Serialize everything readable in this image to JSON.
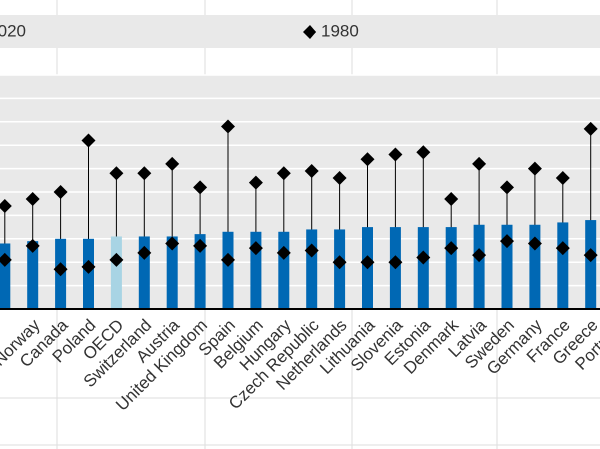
{
  "chart_data": {
    "type": "bar",
    "categories": [
      null,
      "Norway",
      "Canada",
      "Poland",
      "OECD",
      "Switzerland",
      "Austria",
      "United Kingdom",
      "Spain",
      "Belgium",
      "Hungary",
      "Czech Republic",
      "Netherlands",
      "Lithuania",
      "Slovenia",
      "Estonia",
      "Denmark",
      "Latvia",
      "Sweden",
      "Germany",
      "France",
      "Greece",
      "Portugal"
    ],
    "series": [
      {
        "name": "2020",
        "type": "bar",
        "color": "#0068b4",
        "colors": [
          "#0068b4",
          "#0068b4",
          "#0068b4",
          "#0068b4",
          "#a8d4e4",
          "#0068b4",
          "#0068b4",
          "#0068b4",
          "#0068b4",
          "#0068b4",
          "#0068b4",
          "#0068b4",
          "#0068b4",
          "#0068b4",
          "#0068b4",
          "#0068b4",
          "#0068b4",
          "#0068b4",
          "#0068b4",
          "#0068b4",
          "#0068b4",
          "#0068b4",
          "#0068b4"
        ],
        "values": [
          2.8,
          2.9,
          3.0,
          3.0,
          3.1,
          3.1,
          3.1,
          3.2,
          3.3,
          3.3,
          3.3,
          3.4,
          3.4,
          3.5,
          3.5,
          3.5,
          3.5,
          3.6,
          3.6,
          3.6,
          3.7,
          3.8,
          3.8
        ]
      },
      {
        "name": "1980",
        "type": "diamond",
        "color": "#000000",
        "values": [
          4.4,
          4.7,
          5.0,
          7.2,
          5.8,
          5.8,
          6.2,
          5.2,
          7.8,
          5.4,
          5.8,
          5.9,
          5.6,
          6.4,
          6.6,
          6.7,
          4.7,
          6.2,
          5.2,
          6.0,
          5.6,
          7.7,
          null
        ]
      },
      {
        "type": "diamond",
        "color": "#000000",
        "values": [
          2.1,
          2.7,
          1.7,
          1.8,
          2.1,
          2.4,
          2.8,
          2.7,
          2.1,
          2.6,
          2.4,
          2.5,
          2.0,
          2.0,
          2.0,
          2.2,
          2.6,
          2.3,
          2.9,
          2.8,
          2.6,
          2.3,
          null
        ]
      }
    ],
    "ylim": [
      0,
      10
    ],
    "yticks": [
      0,
      1,
      2,
      3,
      4,
      5,
      6,
      7,
      8,
      9,
      10
    ],
    "grid": true
  }
}
